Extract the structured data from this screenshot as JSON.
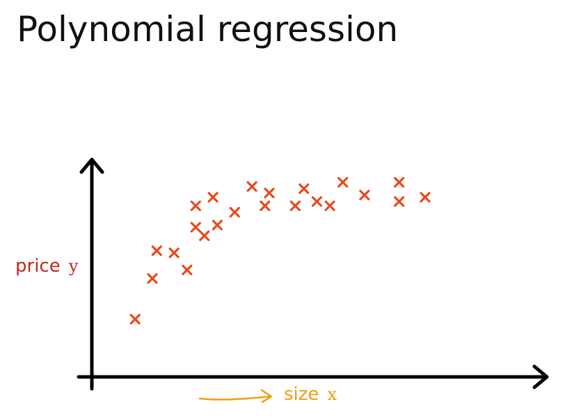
{
  "slide": {
    "title": "Polynomial regression"
  },
  "chart_data": {
    "type": "scatter",
    "title": "Polynomial regression",
    "xlabel": "size x",
    "ylabel": "price y",
    "xlabel_word": "size",
    "xlabel_var": "x",
    "ylabel_word": "price",
    "ylabel_var": "y",
    "x_ticks": "none",
    "y_ticks": "none",
    "grid": false,
    "legend": "none",
    "marker": "x",
    "colors": {
      "points": "#e8491d",
      "ylabel": "#c0281c",
      "xlabel": "#f39c12",
      "xlabel_arrow": "#f39c12",
      "axes": "#000000"
    },
    "xlim": [
      0,
      100
    ],
    "ylim": [
      0,
      100
    ],
    "series": [
      {
        "x": [
          10,
          14,
          15,
          19,
          22,
          24,
          24,
          26,
          28,
          29,
          33,
          37,
          40,
          41,
          47,
          49,
          52,
          55,
          58,
          63,
          71,
          71,
          77
        ],
        "y": [
          27,
          46,
          59,
          58,
          50,
          80,
          70,
          66,
          84,
          71,
          77,
          89,
          80,
          86,
          80,
          88,
          82,
          80,
          91,
          85,
          91,
          82,
          84
        ]
      }
    ]
  }
}
